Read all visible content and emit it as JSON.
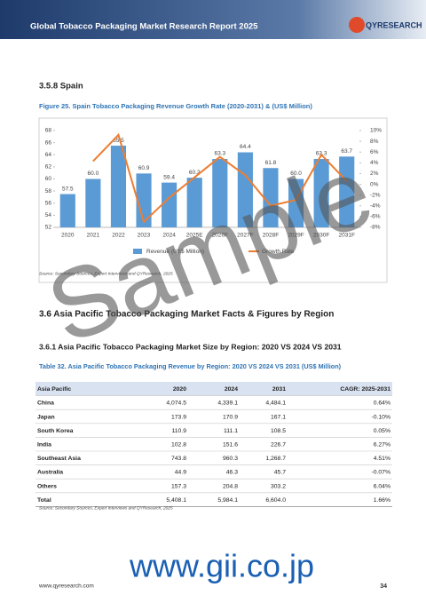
{
  "header": {
    "title": "Global Tobacco Packaging Market Research Report 2025",
    "logo": "QYRESEARCH"
  },
  "section_spain": "3.5.8 Spain",
  "chart_data": {
    "type": "bar-line",
    "title": "Figure 25.  Spain Tobacco Packaging Revenue Growth Rate (2020-2031) & (US$ Million)",
    "categories": [
      "2020",
      "2021",
      "2022",
      "2023",
      "2024",
      "2025E",
      "2026F",
      "2027F",
      "2028F",
      "2029F",
      "2030F",
      "2031F"
    ],
    "series": [
      {
        "name": "Revenue (US$ Million)",
        "color": "#5b9bd5",
        "kind": "bar",
        "values": [
          57.5,
          60.0,
          65.5,
          60.9,
          59.4,
          60.2,
          63.3,
          64.4,
          61.8,
          60.0,
          63.3,
          63.7
        ],
        "value_labels": [
          "57.5",
          "60.0",
          "65.5",
          "60.9",
          "59.4",
          "60.2",
          "63.3",
          "64.4",
          "61.8",
          "60.0",
          "63.3",
          "63.7"
        ]
      },
      {
        "name": "Growth Rate",
        "color": "#ed7d31",
        "kind": "line",
        "axis": "y2",
        "values": [
          null,
          4.3,
          9.2,
          -7.0,
          -2.5,
          1.3,
          5.1,
          1.7,
          -4.0,
          -2.9,
          5.5,
          0.6
        ]
      }
    ],
    "ylim": [
      52,
      68
    ],
    "yticks": [
      52,
      54,
      56,
      58,
      60,
      62,
      64,
      66,
      68
    ],
    "y2lim": [
      -8,
      10
    ],
    "y2ticks": [
      {
        "value": -8,
        "label": "-8%"
      },
      {
        "value": -6,
        "label": "-6%"
      },
      {
        "value": -4,
        "label": "-4%"
      },
      {
        "value": -2,
        "label": "-2%"
      },
      {
        "value": 0,
        "label": "0%"
      },
      {
        "value": 2,
        "label": "2%"
      },
      {
        "value": 4,
        "label": "4%"
      },
      {
        "value": 6,
        "label": "6%"
      },
      {
        "value": 8,
        "label": "8%"
      },
      {
        "value": 10,
        "label": "10%"
      }
    ],
    "source": "Source: Secondary Sources, Expert Interviews and QYResearch, 2025"
  },
  "section_asia": "3.6  Asia Pacific Tobacco Packaging Market Facts & Figures by Region",
  "subsection": "3.6.1  Asia Pacific Tobacco Packaging Market Size by Region: 2020 VS 2024 VS 2031",
  "table": {
    "caption": "Table 32.  Asia Pacific Tobacco Packaging Revenue by Region: 2020 VS 2024 VS 2031 (US$ Million)",
    "header": [
      "Asia Pacific",
      "2020",
      "2024",
      "2031",
      "CAGR: 2025-2031"
    ],
    "rows": [
      [
        "China",
        "4,074.5",
        "4,339.1",
        "4,484.1",
        "0.64%"
      ],
      [
        "Japan",
        "173.9",
        "170.9",
        "167.1",
        "-0.10%"
      ],
      [
        "South Korea",
        "110.9",
        "111.1",
        "108.5",
        "0.05%"
      ],
      [
        "India",
        "102.8",
        "151.6",
        "226.7",
        "6.27%"
      ],
      [
        "Southeast Asia",
        "743.8",
        "960.3",
        "1,268.7",
        "4.51%"
      ],
      [
        "Australia",
        "44.9",
        "46.3",
        "45.7",
        "-0.07%"
      ],
      [
        "Others",
        "157.3",
        "204.8",
        "303.2",
        "6.04%"
      ],
      [
        "Total",
        "5,408.1",
        "5,984.1",
        "6,604.0",
        "1.66%"
      ]
    ],
    "source": "Source: Secondary Sources, Expert Interviews and QYResearch, 2025"
  },
  "watermark": "Sample",
  "site_overlay": "www.gii.co.jp",
  "footer": {
    "url": "www.qyresearch.com",
    "page": "34"
  }
}
